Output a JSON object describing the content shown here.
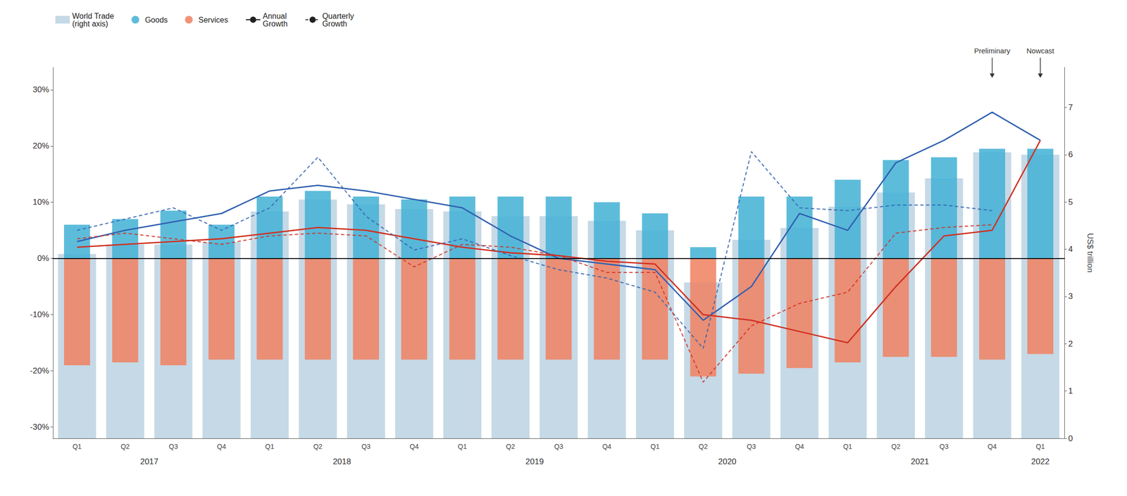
{
  "chart_data": {
    "type": "bar",
    "categories": [
      "Q1",
      "Q2",
      "Q3",
      "Q4",
      "Q1",
      "Q2",
      "Q3",
      "Q4",
      "Q1",
      "Q2",
      "Q3",
      "Q4",
      "Q1",
      "Q2",
      "Q3",
      "Q4",
      "Q1",
      "Q2",
      "Q3",
      "Q4",
      "Q1"
    ],
    "ylim": [
      -32,
      34
    ],
    "yticks": [
      {
        "value": -30,
        "label": "-30%"
      },
      {
        "value": -20,
        "label": "-20%"
      },
      {
        "value": -10,
        "label": "-10%"
      },
      {
        "value": 0,
        "label": "0%"
      },
      {
        "value": 10,
        "label": "10%"
      },
      {
        "value": 20,
        "label": "20%"
      },
      {
        "value": 30,
        "label": "30%"
      }
    ],
    "y2label": "US$ trillion",
    "y2lim": [
      0,
      7.85
    ],
    "y2ticks": [
      0,
      1,
      2,
      3,
      4,
      5,
      6,
      7
    ],
    "grid": false,
    "legend": "upper left",
    "annotations": [
      {
        "text": "2017",
        "x": 1.5
      },
      {
        "text": "2018",
        "x": 5.5
      },
      {
        "text": "2019",
        "x": 9.5
      },
      {
        "text": "2020",
        "x": 13.5
      },
      {
        "text": "2021",
        "x": 17.5
      },
      {
        "text": "2022",
        "x": 20
      },
      {
        "text": "Preliminary",
        "x": 19,
        "marker": "arrow"
      },
      {
        "text": "Nowcast",
        "x": 20,
        "marker": "arrow"
      }
    ],
    "series": [
      {
        "name": "World Trade\n(right axis)",
        "type": "bar",
        "axis": "y2",
        "color": "#b8cfe0",
        "values": [
          3.9,
          4.1,
          4.1,
          4.15,
          4.8,
          5.05,
          4.95,
          4.85,
          4.8,
          4.7,
          4.7,
          4.6,
          4.4,
          3.3,
          4.2,
          4.45,
          4.9,
          5.2,
          5.5,
          6.05,
          6.0
        ]
      },
      {
        "name": "Goods",
        "type": "bar",
        "color": "#42b0d5",
        "values": [
          6.0,
          7.0,
          8.5,
          6.0,
          11.0,
          12.0,
          11.0,
          10.5,
          11.0,
          11.0,
          11.0,
          10.0,
          8.0,
          2.0,
          11.0,
          11.0,
          14.0,
          17.5,
          18.0,
          19.5,
          19.5
        ]
      },
      {
        "name": "Services",
        "type": "bar",
        "color": "#f08060",
        "values": [
          -19.0,
          -18.5,
          -19.0,
          -18.0,
          -18.0,
          -18.0,
          -18.0,
          -18.0,
          -18.0,
          -18.0,
          -18.0,
          -18.0,
          -18.0,
          -21.0,
          -20.5,
          -19.5,
          -18.5,
          -17.5,
          -17.5,
          -18.0,
          -17.0
        ]
      },
      {
        "name": "Annual\nGrowth",
        "type": "line",
        "line_style": "solid",
        "color": "#3060b0",
        "values": [
          3.0,
          5.0,
          6.5,
          8.0,
          12.0,
          13.0,
          12.0,
          10.5,
          9.0,
          4.0,
          0.0,
          -1.0,
          -2.0,
          -11.0,
          -5.0,
          8.0,
          5.0,
          17.0,
          21.0,
          26.0,
          21.0
        ]
      },
      {
        "name": "Annual\nGrowth",
        "type": "line",
        "line_style": "solid",
        "color": "#d03020",
        "values": [
          2.0,
          2.5,
          3.0,
          3.5,
          4.5,
          5.5,
          5.0,
          3.5,
          2.0,
          1.0,
          0.5,
          -0.5,
          -1.0,
          -10.0,
          -11.0,
          -13.0,
          -15.0,
          -5.0,
          4.0,
          5.0,
          21.0
        ]
      },
      {
        "name": "Quarterly\nGrowth",
        "type": "line",
        "line_style": "dashed",
        "color": "#3060b0",
        "values": [
          5.0,
          7.0,
          9.0,
          5.0,
          9.0,
          18.0,
          7.5,
          1.5,
          3.5,
          0.5,
          -2.0,
          -3.5,
          -6.0,
          -16.0,
          19.0,
          9.0,
          8.5,
          9.5,
          9.5,
          8.5,
          null
        ]
      },
      {
        "name": "Quarterly\nGrowth",
        "type": "line",
        "line_style": "dashed",
        "color": "#d03020",
        "values": [
          3.5,
          4.5,
          3.5,
          2.5,
          4.0,
          4.5,
          4.0,
          -1.5,
          2.5,
          2.0,
          0.5,
          -2.5,
          -2.5,
          -22.0,
          -12.0,
          -8.0,
          -6.0,
          4.5,
          5.5,
          6.0,
          null
        ]
      }
    ]
  }
}
